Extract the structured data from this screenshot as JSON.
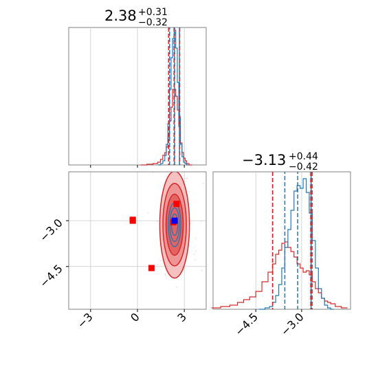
{
  "chart_data": {
    "type": "corner",
    "colors": {
      "red": "#d62728",
      "blue": "#1f77b4",
      "marker_blue": "#0000ff",
      "marker_red": "#ff0000",
      "red_fill": "#f0a0a0"
    },
    "grid": true,
    "params": [
      {
        "name": "param_1",
        "xlim": [
          -4.4,
          4.4
        ],
        "title": {
          "median": "2.38",
          "plus": "+0.31",
          "minus": "−0.32"
        },
        "quantiles_blue": [
          2.06,
          2.38,
          2.69
        ],
        "quantiles_red": [
          2.0,
          2.35,
          2.7
        ],
        "hist_blue": {
          "x": [
            1.4,
            1.55,
            1.7,
            1.8,
            1.9,
            2.0,
            2.1,
            2.2,
            2.3,
            2.4,
            2.5,
            2.6,
            2.7,
            2.8,
            2.9,
            3.0,
            3.1,
            3.2
          ],
          "y": [
            0.0,
            0.01,
            0.03,
            0.07,
            0.15,
            0.3,
            0.55,
            0.78,
            0.92,
            0.98,
            0.85,
            0.6,
            0.35,
            0.15,
            0.06,
            0.02,
            0.01,
            0.0
          ]
        },
        "hist_red": {
          "x": [
            0.4,
            0.8,
            1.2,
            1.4,
            1.55,
            1.7,
            1.8,
            1.9,
            2.0,
            2.1,
            2.2,
            2.3,
            2.4,
            2.5,
            2.6,
            2.7,
            2.8,
            2.9,
            3.0,
            3.1,
            3.2,
            3.4
          ],
          "y": [
            0.0,
            0.005,
            0.01,
            0.02,
            0.04,
            0.07,
            0.09,
            0.13,
            0.2,
            0.32,
            0.42,
            0.55,
            0.55,
            0.5,
            0.4,
            0.28,
            0.16,
            0.09,
            0.05,
            0.03,
            0.01,
            0.0
          ]
        }
      },
      {
        "name": "param_2",
        "xlim": [
          -5.9,
          -1.4
        ],
        "title": {
          "median": "−3.13",
          "plus": "+0.44",
          "minus": "−0.42"
        },
        "quantiles_blue": [
          -3.55,
          -3.13,
          -2.69
        ],
        "quantiles_red": [
          -3.95,
          -2.7,
          -2.66
        ],
        "hist_blue": {
          "x": [
            -4.3,
            -4.1,
            -4.0,
            -3.9,
            -3.8,
            -3.7,
            -3.6,
            -3.5,
            -3.4,
            -3.3,
            -3.2,
            -3.1,
            -3.0,
            -2.9,
            -2.8,
            -2.7,
            -2.6,
            -2.5,
            -2.4,
            -2.3,
            -2.2,
            -2.1,
            -2.0
          ],
          "y": [
            0.0,
            0.01,
            0.02,
            0.05,
            0.1,
            0.18,
            0.3,
            0.45,
            0.58,
            0.72,
            0.86,
            0.9,
            0.88,
            0.95,
            0.85,
            0.7,
            0.5,
            0.3,
            0.15,
            0.08,
            0.03,
            0.01,
            0.0
          ]
        },
        "hist_red": {
          "x": [
            -5.8,
            -5.5,
            -5.2,
            -5.0,
            -4.8,
            -4.6,
            -4.4,
            -4.2,
            -4.0,
            -3.9,
            -3.8,
            -3.7,
            -3.6,
            -3.5,
            -3.4,
            -3.3,
            -3.2,
            -3.1,
            -3.0,
            -2.9,
            -2.8,
            -2.7,
            -2.6,
            -2.5,
            -2.4,
            -2.3,
            -2.2,
            -2.1,
            -2.0,
            -1.8,
            -1.6
          ],
          "y": [
            0.01,
            0.02,
            0.03,
            0.05,
            0.07,
            0.09,
            0.13,
            0.2,
            0.27,
            0.33,
            0.4,
            0.43,
            0.48,
            0.49,
            0.45,
            0.42,
            0.38,
            0.33,
            0.3,
            0.27,
            0.28,
            0.25,
            0.2,
            0.15,
            0.12,
            0.08,
            0.06,
            0.05,
            0.04,
            0.02,
            0.01
          ]
        }
      }
    ],
    "ticks_param_1": [
      "−3",
      "0",
      "3"
    ],
    "ticks_param_2": [
      "−4.5",
      "−3.0"
    ],
    "tick_values_param_1": [
      -3,
      0,
      3
    ],
    "tick_values_param_2": [
      -4.5,
      -3.0
    ],
    "joint": {
      "center": [
        2.38,
        -3.13
      ],
      "contour_levels_red": [
        [
          0.55,
          1.0
        ],
        [
          0.75,
          1.35
        ],
        [
          0.95,
          1.75
        ]
      ],
      "contour_levels_blue": [
        [
          0.2,
          0.35
        ],
        [
          0.3,
          0.55
        ],
        [
          0.4,
          0.72
        ]
      ],
      "markers_red": [
        [
          -0.3,
          -2.97
        ],
        [
          -0.3,
          -3.0
        ],
        [
          0.9,
          -4.55
        ],
        [
          2.5,
          -2.45
        ],
        [
          2.3,
          -3.05
        ]
      ],
      "marker_blue": [
        2.38,
        -3.0
      ]
    }
  }
}
